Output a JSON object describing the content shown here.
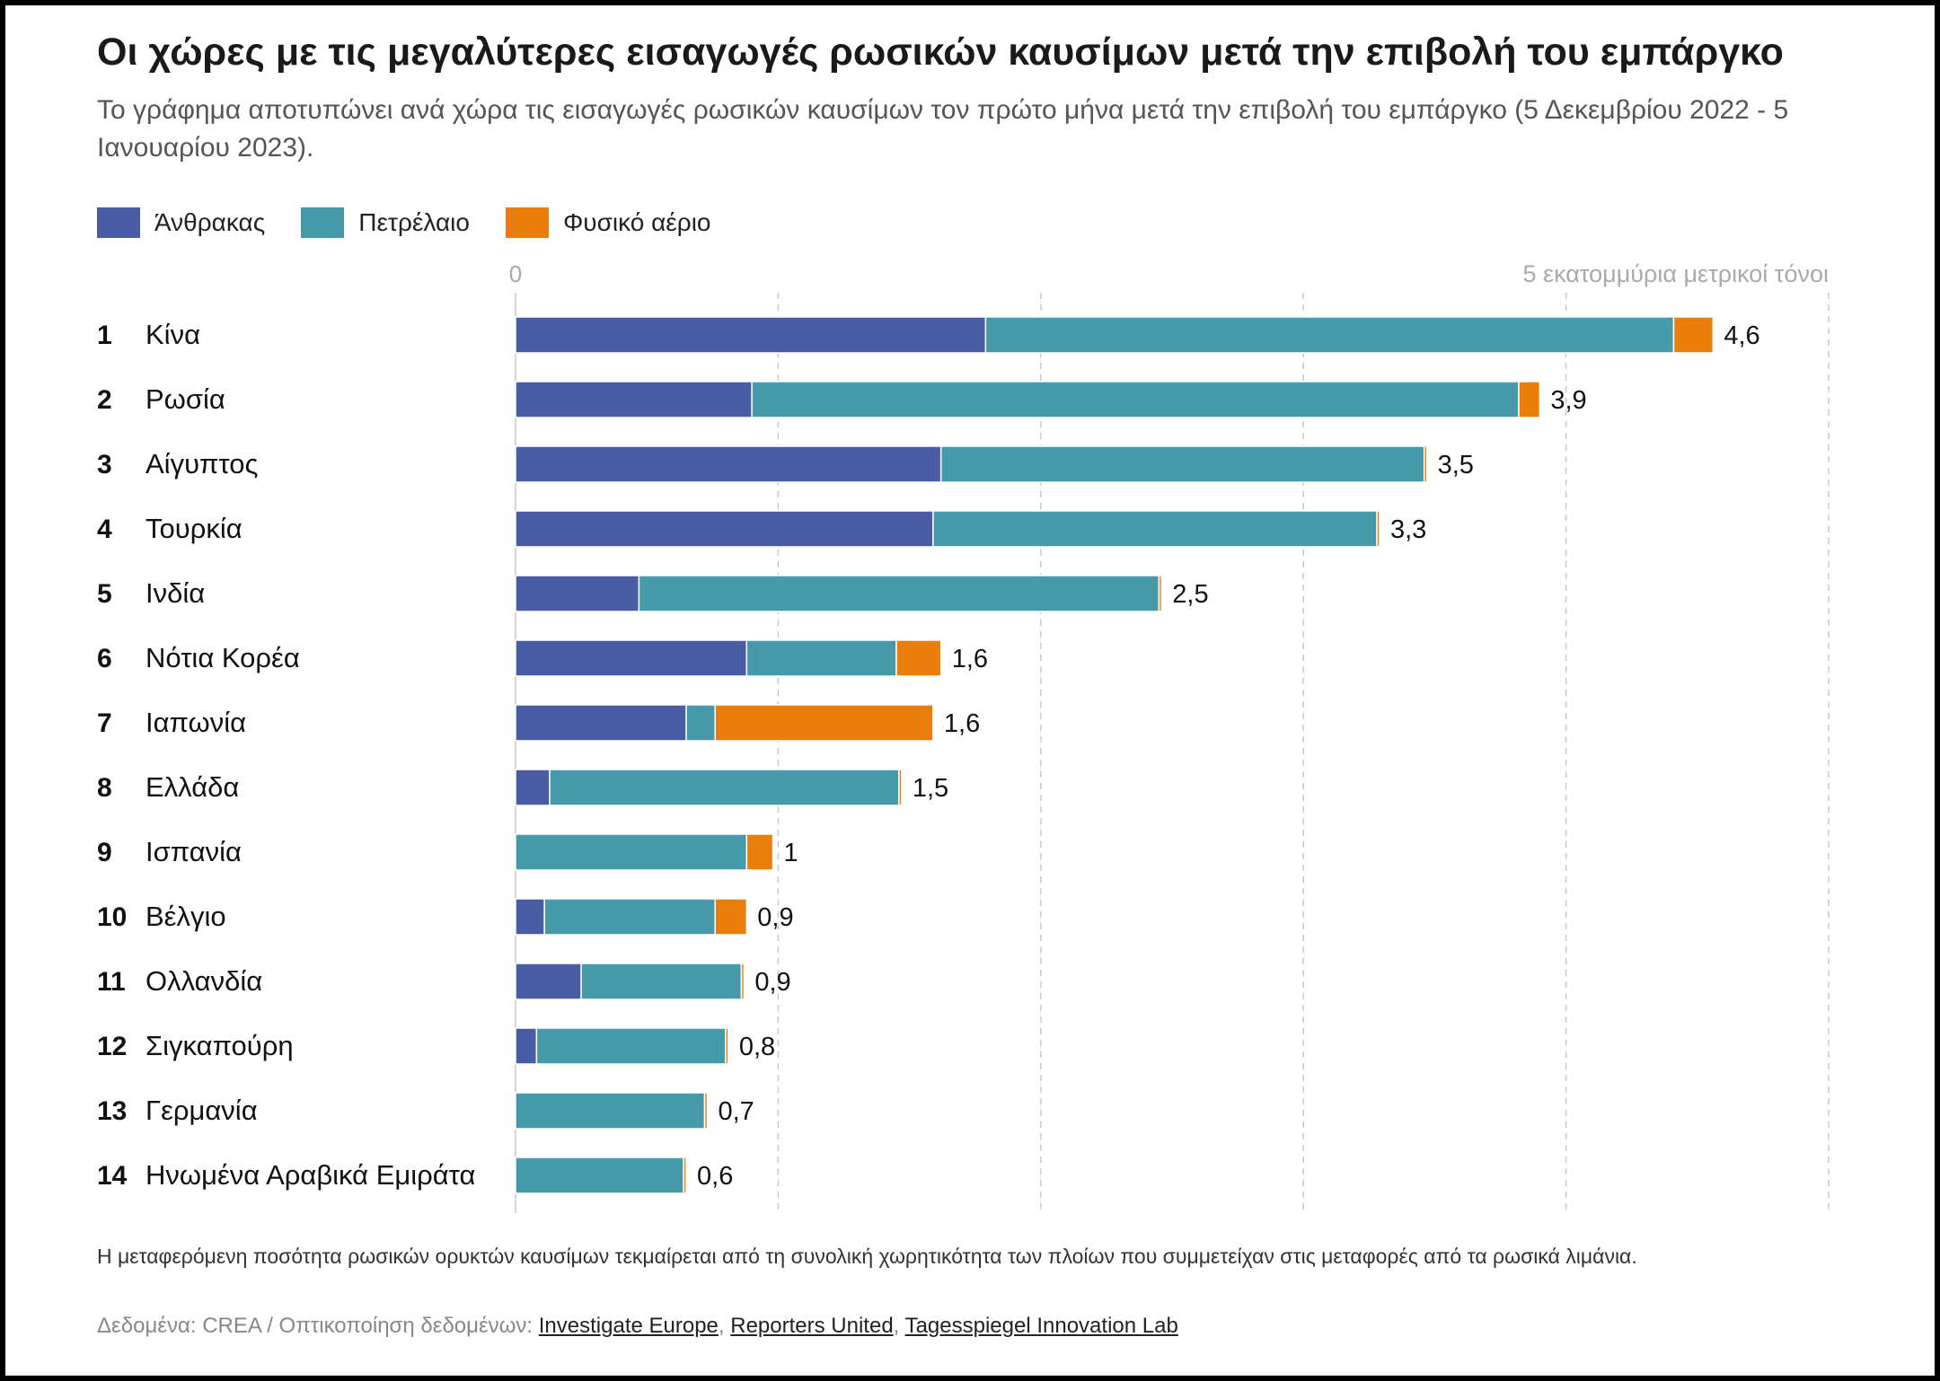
{
  "header": {
    "title": "Οι χώρες με τις μεγαλύτερες εισαγωγές ρωσικών καυσίμων μετά την επιβολή του εμπάργκο",
    "subtitle": "Το γράφημα αποτυπώνει ανά χώρα τις εισαγωγές ρωσικών καυσίμων τον πρώτο μήνα μετά την επιβολή του εμπάργκο (5 Δεκεμβρίου 2022 - 5 Ιανουαρίου 2023)."
  },
  "colors": {
    "coal": "#4a5ca4",
    "oil": "#4699a8",
    "gas": "#ea7e0d",
    "grid": "#c8c8c8",
    "axis_label": "#aaaaaa"
  },
  "chart_data": {
    "type": "bar",
    "orientation": "horizontal",
    "stacked": true,
    "legend_position": "top-left",
    "grid": true,
    "axis": {
      "start_label": "0",
      "end_label": "5 εκατομμύρια μετρικοί τόνοι",
      "xlim": [
        0,
        5
      ]
    },
    "series": [
      {
        "name": "Άνθρακας",
        "color": "#4a5ca4",
        "values": [
          1.79,
          0.9,
          1.62,
          1.59,
          0.47,
          0.88,
          0.65,
          0.13,
          0.0,
          0.11,
          0.25,
          0.08,
          0.0,
          0.0
        ]
      },
      {
        "name": "Πετρέλαιο",
        "color": "#4699a8",
        "values": [
          2.62,
          2.92,
          1.84,
          1.69,
          1.98,
          0.57,
          0.11,
          1.33,
          0.88,
          0.65,
          0.61,
          0.72,
          0.72,
          0.64
        ]
      },
      {
        "name": "Φυσικό αέριο",
        "color": "#ea7e0d",
        "values": [
          0.15,
          0.08,
          0.01,
          0.01,
          0.01,
          0.17,
          0.83,
          0.01,
          0.1,
          0.12,
          0.01,
          0.01,
          0.01,
          0.01
        ]
      }
    ],
    "rows": [
      {
        "rank": "1",
        "country": "Κίνα",
        "total_label": "4,6"
      },
      {
        "rank": "2",
        "country": "Ρωσία",
        "total_label": "3,9"
      },
      {
        "rank": "3",
        "country": "Αίγυπτος",
        "total_label": "3,5"
      },
      {
        "rank": "4",
        "country": "Τουρκία",
        "total_label": "3,3"
      },
      {
        "rank": "5",
        "country": "Ινδία",
        "total_label": "2,5"
      },
      {
        "rank": "6",
        "country": "Νότια Κορέα",
        "total_label": "1,6"
      },
      {
        "rank": "7",
        "country": "Ιαπωνία",
        "total_label": "1,6"
      },
      {
        "rank": "8",
        "country": "Ελλάδα",
        "total_label": "1,5"
      },
      {
        "rank": "9",
        "country": "Ισπανία",
        "total_label": "1"
      },
      {
        "rank": "10",
        "country": "Βέλγιο",
        "total_label": "0,9"
      },
      {
        "rank": "11",
        "country": "Ολλανδία",
        "total_label": "0,9"
      },
      {
        "rank": "12",
        "country": "Σιγκαπούρη",
        "total_label": "0,8"
      },
      {
        "rank": "13",
        "country": "Γερμανία",
        "total_label": "0,7"
      },
      {
        "rank": "14",
        "country": "Ηνωμένα Αραβικά Εμιράτα",
        "total_label": "0,6"
      }
    ]
  },
  "footer": {
    "footnote": "Η μεταφερόμενη ποσότητα ρωσικών ορυκτών καυσίμων τεκμαίρεται από τη συνολική χωρητικότητα των πλοίων που συμμετείχαν στις μεταφορές από τα ρωσικά λιμάνια.",
    "source_prefix": "Δεδομένα:",
    "source_name": "CREA",
    "viz_prefix": "/ Οπτικοποίηση δεδομένων:",
    "credit_1": "Investigate Europe",
    "credit_2": "Reporters United",
    "credit_3": "Tagesspiegel Innovation Lab",
    "sep": ","
  }
}
